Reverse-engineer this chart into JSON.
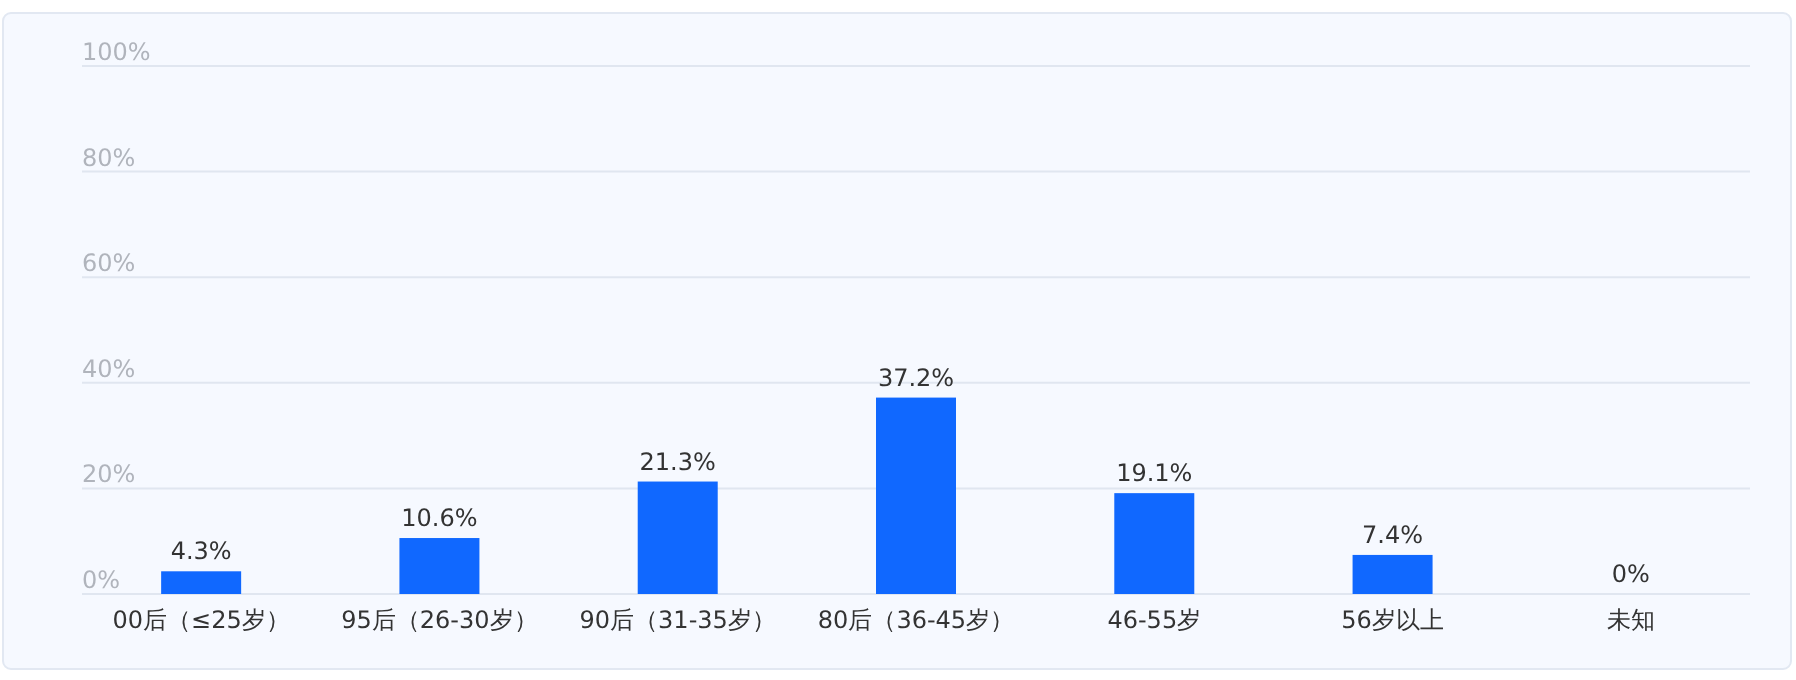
{
  "chart_data": {
    "type": "bar",
    "categories": [
      "00后（≤25岁）",
      "95后（26-30岁）",
      "90后（31-35岁）",
      "80后（36-45岁）",
      "46-55岁",
      "56岁以上",
      "未知"
    ],
    "values": [
      4.3,
      10.6,
      21.3,
      37.2,
      19.1,
      7.4,
      0
    ],
    "value_labels": [
      "4.3%",
      "10.6%",
      "21.3%",
      "37.2%",
      "19.1%",
      "7.4%",
      "0%"
    ],
    "color": "#1068ff",
    "ylim": [
      0,
      100
    ],
    "yticks": [
      {
        "value": 0,
        "label": "0%"
      },
      {
        "value": 20,
        "label": "20%"
      },
      {
        "value": 40,
        "label": "40%"
      },
      {
        "value": 60,
        "label": "60%"
      },
      {
        "value": 80,
        "label": "80%"
      },
      {
        "value": 100,
        "label": "100%"
      }
    ],
    "grid": "y"
  }
}
